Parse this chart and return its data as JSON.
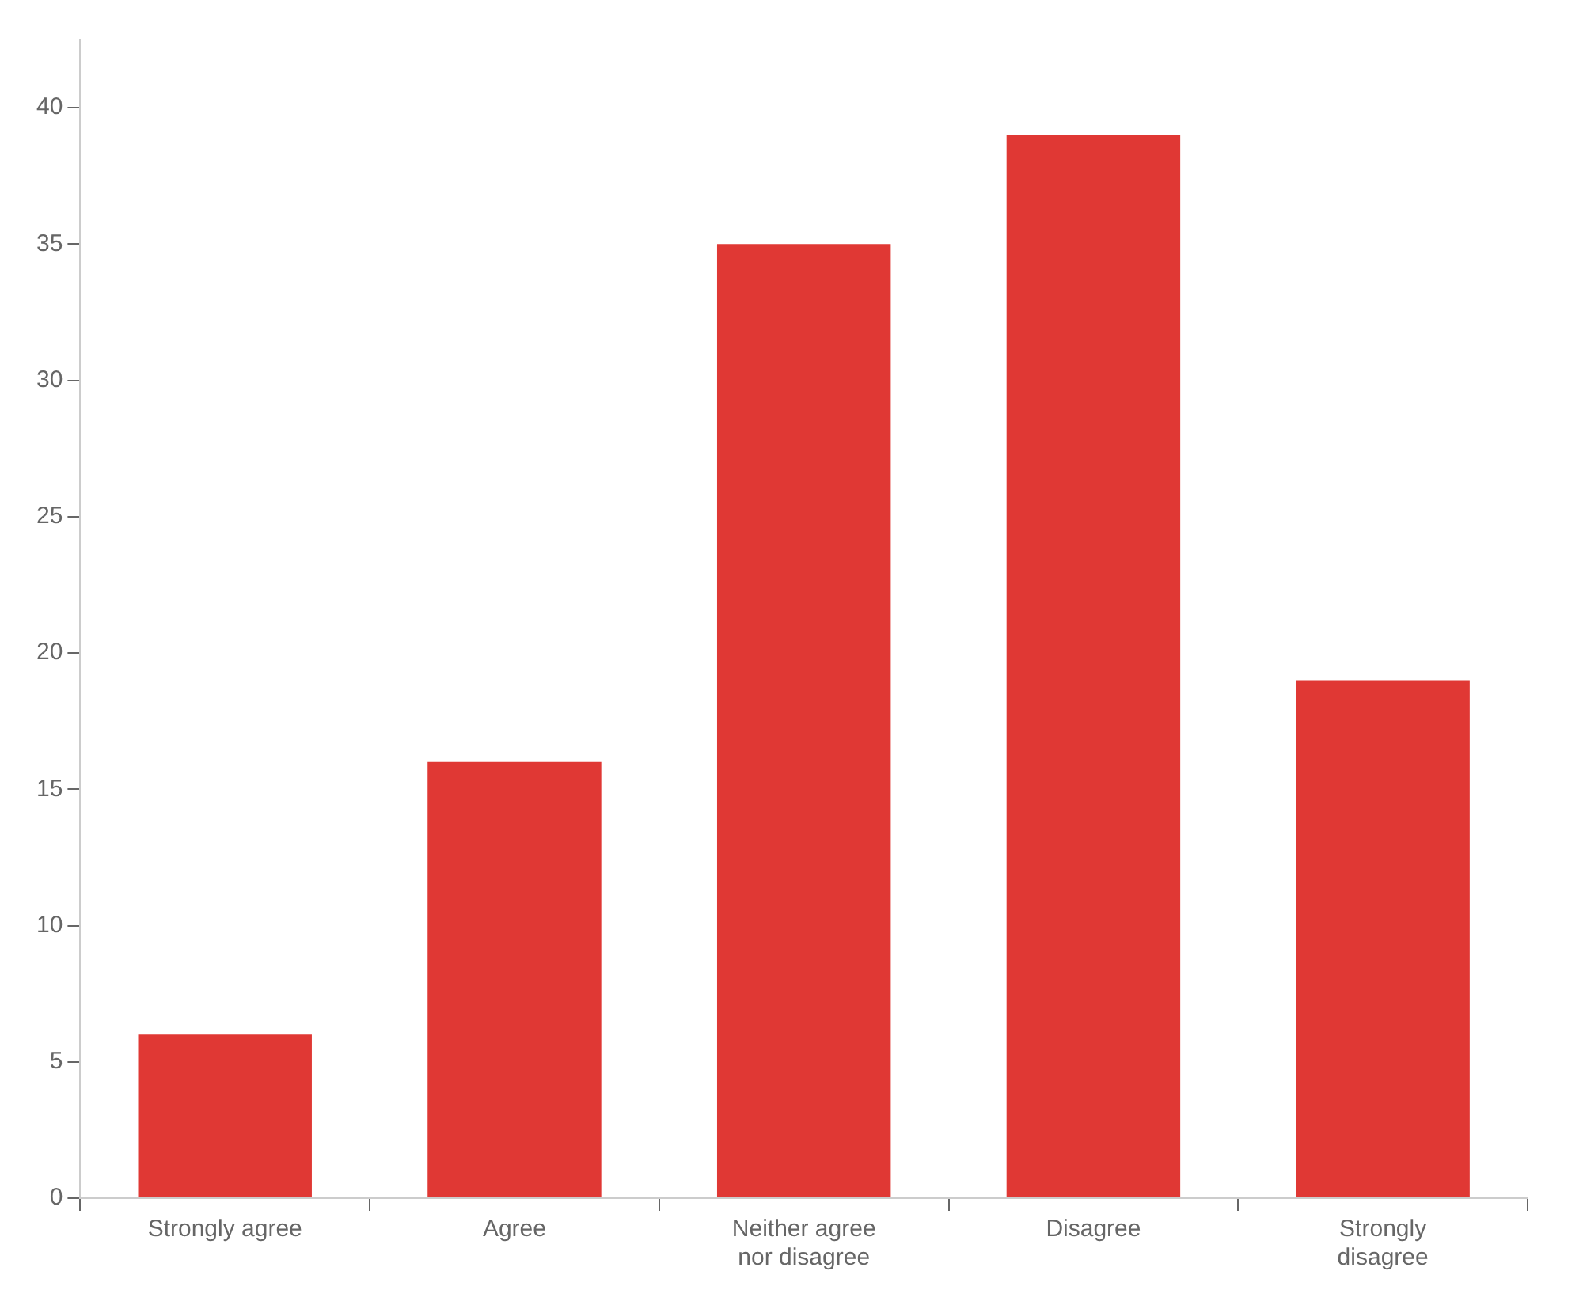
{
  "chart_data": {
    "type": "bar",
    "categories": [
      "Strongly agree",
      "Agree",
      "Neither agree nor disagree",
      "Disagree",
      "Strongly disagree"
    ],
    "values": [
      6,
      16,
      35,
      39,
      19
    ],
    "color": "#e03834",
    "ylim": [
      0,
      42.5
    ],
    "yticks": [
      0,
      5,
      10,
      15,
      20,
      25,
      30,
      35,
      40
    ],
    "grid": false,
    "legend": false
  }
}
